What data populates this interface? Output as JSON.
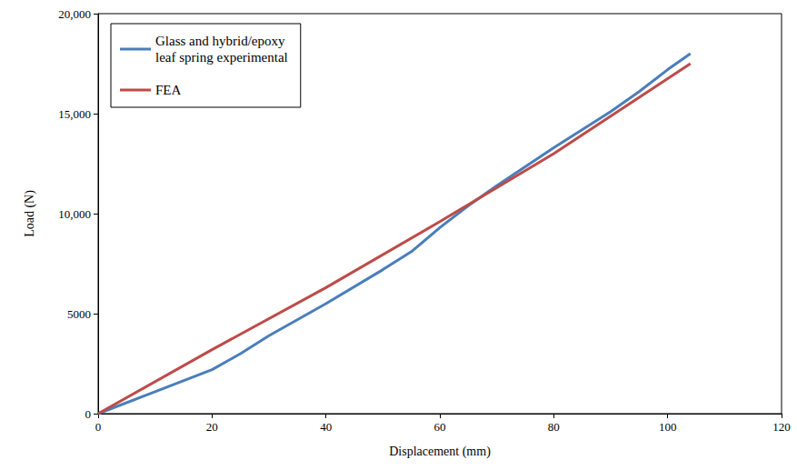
{
  "chart_data": {
    "type": "line",
    "x_label": "Displacement (mm)",
    "y_label": "Load (N)",
    "xlim": [
      0,
      120
    ],
    "xticks": [
      0,
      20,
      40,
      60,
      80,
      100,
      120
    ],
    "ylim": [
      0,
      20000
    ],
    "yticks": [
      0,
      5000,
      {
        "value": 10000,
        "label": "10,000"
      },
      {
        "value": 15000,
        "label": "15,000"
      },
      {
        "value": 20000,
        "label": "20,000"
      }
    ],
    "grid": false,
    "legend": "upper left",
    "series": [
      {
        "name": "Glass and hybrid/epoxy leaf spring experimental",
        "color": "#4a7ebb",
        "x": [
          0,
          10,
          20,
          25,
          30,
          40,
          50,
          55,
          60,
          65,
          70,
          80,
          90,
          95,
          100,
          104
        ],
        "values": [
          0,
          1100,
          2200,
          3000,
          3900,
          5500,
          7200,
          8100,
          9300,
          10400,
          11400,
          13300,
          15100,
          16100,
          17200,
          18000
        ]
      },
      {
        "name": "FEA",
        "color": "#be4b48",
        "x": [
          0,
          20,
          40,
          60,
          80,
          104
        ],
        "values": [
          0,
          3200,
          6300,
          9600,
          13000,
          17500
        ]
      }
    ]
  }
}
